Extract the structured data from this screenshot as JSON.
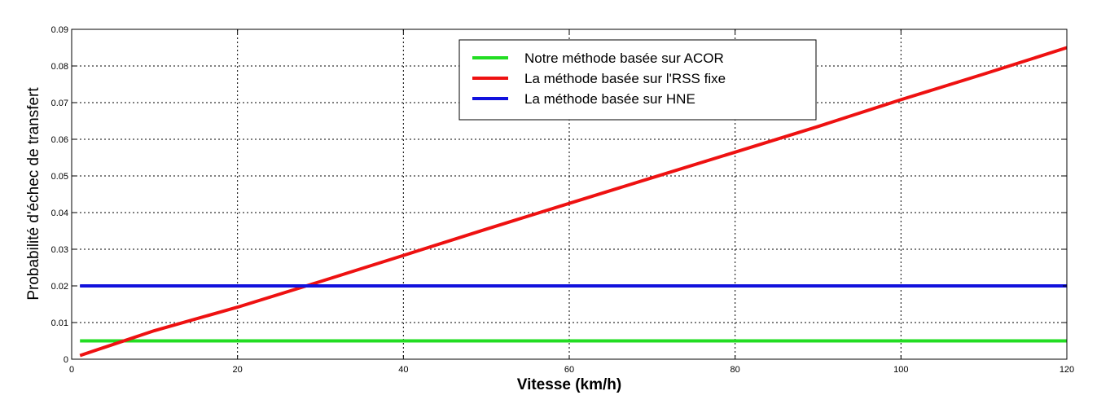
{
  "chart_data": {
    "type": "line",
    "title": "",
    "xlabel": "Vitesse (km/h)",
    "ylabel": "Probabilité d'échec de transfert",
    "xlim": [
      0,
      120
    ],
    "ylim": [
      0,
      0.09
    ],
    "x_ticks": [
      0,
      20,
      40,
      60,
      80,
      100,
      120
    ],
    "y_ticks": [
      0,
      0.01,
      0.02,
      0.03,
      0.04,
      0.05,
      0.06,
      0.07,
      0.08,
      0.09
    ],
    "grid": true,
    "legend_position": "top-center",
    "series": [
      {
        "name": "Notre méthode basée sur ACOR",
        "color": "#22dd22",
        "x": [
          1,
          120
        ],
        "y": [
          0.005,
          0.005
        ]
      },
      {
        "name": "La méthode basée sur l'RSS fixe",
        "color": "#ee1111",
        "x": [
          1,
          10,
          20,
          30,
          40,
          50,
          60,
          70,
          80,
          90,
          100,
          110,
          120
        ],
        "y": [
          0.001,
          0.0078,
          0.0142,
          0.0212,
          0.0283,
          0.0355,
          0.0425,
          0.0495,
          0.0565,
          0.0635,
          0.0708,
          0.0778,
          0.085
        ]
      },
      {
        "name": "La méthode basée sur HNE",
        "color": "#1111dd",
        "x": [
          1,
          120
        ],
        "y": [
          0.02,
          0.02
        ]
      }
    ]
  }
}
